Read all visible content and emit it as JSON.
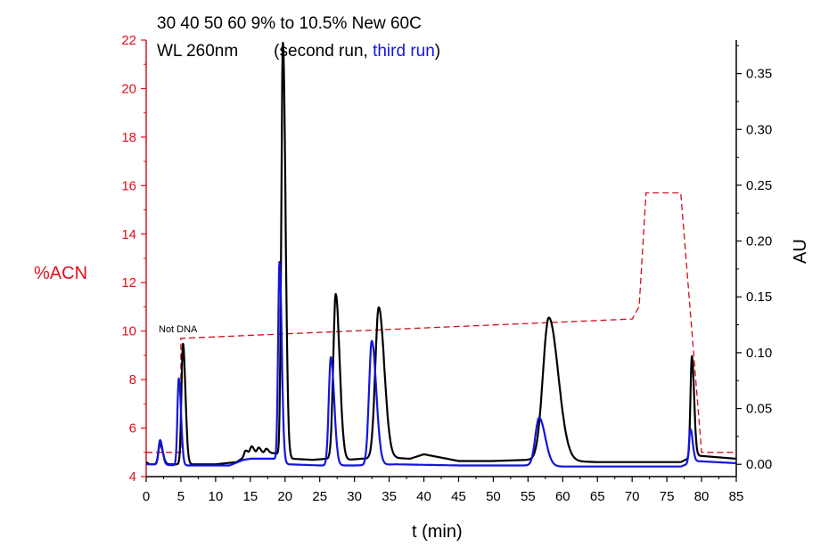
{
  "chart_data": {
    "type": "line",
    "title_line1": "30 40 50 60 9% to 10.5% New 60C",
    "title_line2_prefix": "WL 260nm",
    "title_line2_open": "(second run, ",
    "title_line2_blue": "third run",
    "title_line2_close": ")",
    "xlabel": "t (min)",
    "ylabel_left": "%ACN",
    "ylabel_right": "AU",
    "annotation": "Not DNA",
    "xlim": [
      0,
      85
    ],
    "ylim_left": [
      4,
      22
    ],
    "ylim_right": [
      -0.011,
      0.38
    ],
    "x_ticks": [
      0,
      5,
      10,
      15,
      20,
      25,
      30,
      35,
      40,
      45,
      50,
      55,
      60,
      65,
      70,
      75,
      80,
      85
    ],
    "y_left_ticks": [
      4,
      6,
      8,
      10,
      12,
      14,
      16,
      18,
      20,
      22
    ],
    "y_right_ticks": [
      "0.00",
      "0.05",
      "0.10",
      "0.15",
      "0.20",
      "0.25",
      "0.30",
      "0.35"
    ],
    "colors": {
      "gradient": "#d0101c",
      "second_run": "#000000",
      "third_run": "#1414e0",
      "left_axis": "#e0101c"
    },
    "series": [
      {
        "role": "gradient",
        "axis": "left",
        "x": [
          0,
          5,
          5,
          70,
          71,
          72,
          77,
          80,
          85
        ],
        "y": [
          5.0,
          5.0,
          9.7,
          10.5,
          11.0,
          15.7,
          15.7,
          5.0,
          5.0
        ]
      },
      {
        "role": "second run",
        "axis": "right",
        "baseline": [
          [
            0,
            0.002
          ],
          [
            0.5,
            0.0
          ],
          [
            4.5,
            0.0
          ],
          [
            6,
            0.0
          ],
          [
            10,
            0.0
          ],
          [
            13,
            0.002
          ],
          [
            15,
            0.01
          ],
          [
            18.5,
            0.01
          ],
          [
            21,
            0.005
          ],
          [
            24,
            0.004
          ],
          [
            26,
            0.005
          ],
          [
            29,
            0.004
          ],
          [
            31,
            0.005
          ],
          [
            35,
            0.006
          ],
          [
            38,
            0.005
          ],
          [
            40,
            0.009
          ],
          [
            45,
            0.003
          ],
          [
            50,
            0.003
          ],
          [
            55,
            0.004
          ],
          [
            60,
            0.003
          ],
          [
            65,
            0.002
          ],
          [
            70,
            0.002
          ],
          [
            77,
            0.002
          ],
          [
            79,
            0.008
          ],
          [
            85,
            0.005
          ]
        ],
        "peaks": [
          {
            "t": 2.0,
            "h": 0.018,
            "w": 0.25
          },
          {
            "t": 5.3,
            "h": 0.108,
            "w": 0.22
          },
          {
            "t": 14.3,
            "h": 0.005,
            "w": 0.2
          },
          {
            "t": 15.2,
            "h": 0.006,
            "w": 0.2
          },
          {
            "t": 16.2,
            "h": 0.005,
            "w": 0.2
          },
          {
            "t": 17.3,
            "h": 0.004,
            "w": 0.2
          },
          {
            "t": 19.7,
            "h": 0.37,
            "w": 0.23
          },
          {
            "t": 27.3,
            "h": 0.148,
            "w": 0.35
          },
          {
            "t": 33.5,
            "h": 0.135,
            "w": 0.5
          },
          {
            "t": 58.0,
            "h": 0.128,
            "w": 0.85
          },
          {
            "t": 78.6,
            "h": 0.09,
            "w": 0.2
          }
        ]
      },
      {
        "role": "third run",
        "axis": "right",
        "baseline": [
          [
            0,
            0.0
          ],
          [
            1,
            0.0
          ],
          [
            4.5,
            -0.001
          ],
          [
            6,
            -0.001
          ],
          [
            12,
            -0.001
          ],
          [
            14,
            0.004
          ],
          [
            15,
            0.005
          ],
          [
            18.5,
            0.005
          ],
          [
            20.5,
            0.0
          ],
          [
            25,
            -0.001
          ],
          [
            30,
            -0.001
          ],
          [
            36,
            0.0
          ],
          [
            45,
            -0.001
          ],
          [
            55,
            -0.001
          ],
          [
            60,
            -0.002
          ],
          [
            77,
            -0.002
          ],
          [
            79,
            0.003
          ],
          [
            85,
            0.001
          ]
        ],
        "peaks": [
          {
            "t": 2.0,
            "h": 0.022,
            "w": 0.22
          },
          {
            "t": 4.7,
            "h": 0.078,
            "w": 0.2
          },
          {
            "t": 19.2,
            "h": 0.178,
            "w": 0.2
          },
          {
            "t": 26.6,
            "h": 0.097,
            "w": 0.3
          },
          {
            "t": 32.5,
            "h": 0.111,
            "w": 0.4
          },
          {
            "t": 56.6,
            "h": 0.043,
            "w": 0.55
          },
          {
            "t": 78.4,
            "h": 0.03,
            "w": 0.2
          }
        ]
      }
    ]
  }
}
